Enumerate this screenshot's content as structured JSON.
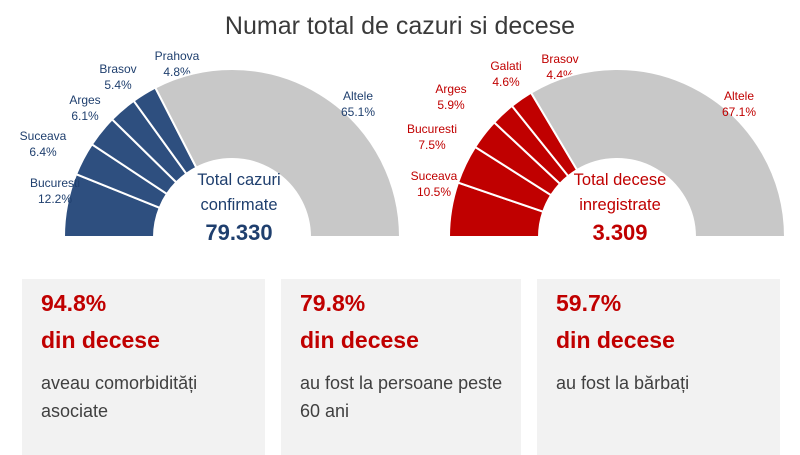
{
  "title": "Numar total de cazuri si decese",
  "chart_data": [
    {
      "type": "pie",
      "variant": "half-donut",
      "color": "#2e4f7f",
      "other_color": "#c8c8c8",
      "center_lines": [
        "Total cazuri",
        "confirmate"
      ],
      "total": "79.330",
      "slices": [
        {
          "label": "Bucuresti",
          "value": 12.2,
          "text": "12.2%"
        },
        {
          "label": "Suceava",
          "value": 6.4,
          "text": "6.4%"
        },
        {
          "label": "Arges",
          "value": 6.1,
          "text": "6.1%"
        },
        {
          "label": "Brasov",
          "value": 5.4,
          "text": "5.4%"
        },
        {
          "label": "Prahova",
          "value": 4.8,
          "text": "4.8%"
        },
        {
          "label": "Altele",
          "value": 65.1,
          "text": "65.1%"
        }
      ]
    },
    {
      "type": "pie",
      "variant": "half-donut",
      "color": "#c00000",
      "other_color": "#c8c8c8",
      "center_lines": [
        "Total decese",
        "inregistrate"
      ],
      "total": "3.309",
      "slices": [
        {
          "label": "Suceava",
          "value": 10.5,
          "text": "10.5%"
        },
        {
          "label": "Bucuresti",
          "value": 7.5,
          "text": "7.5%"
        },
        {
          "label": "Arges",
          "value": 5.9,
          "text": "5.9%"
        },
        {
          "label": "Galati",
          "value": 4.6,
          "text": "4.6%"
        },
        {
          "label": "Brasov",
          "value": 4.4,
          "text": "4.4%"
        },
        {
          "label": "Altele",
          "value": 67.1,
          "text": "67.1%"
        }
      ]
    }
  ],
  "cards": [
    {
      "percent": "94.8%",
      "heading": "din decese",
      "desc": "aveau comorbidități asociate"
    },
    {
      "percent": "79.8%",
      "heading": "din decese",
      "desc": "au fost la persoane peste 60 ani"
    },
    {
      "percent": "59.7%",
      "heading": "din decese",
      "desc": "au fost la bărbați"
    }
  ]
}
